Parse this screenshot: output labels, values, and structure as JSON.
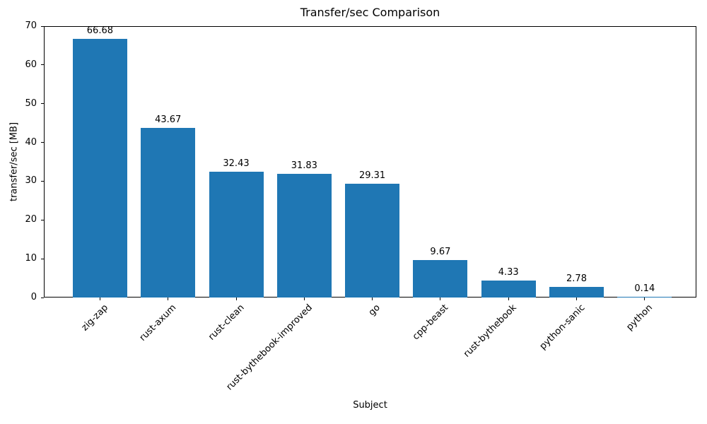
{
  "chart_data": {
    "type": "bar",
    "title": "Transfer/sec Comparison",
    "xlabel": "Subject",
    "ylabel": "transfer/sec [MB]",
    "categories": [
      "zig-zap",
      "rust-axum",
      "rust-clean",
      "rust-bythebook-improved",
      "go",
      "cpp-beast",
      "rust-bythebook",
      "python-sanic",
      "python"
    ],
    "values": [
      66.68,
      43.67,
      32.43,
      31.83,
      29.31,
      9.67,
      4.33,
      2.78,
      0.14
    ],
    "value_labels": [
      "66.68",
      "43.67",
      "32.43",
      "31.83",
      "29.31",
      "9.67",
      "4.33",
      "2.78",
      "0.14"
    ],
    "ylim": [
      0,
      70
    ],
    "yticks": [
      0,
      10,
      20,
      30,
      40,
      50,
      60,
      70
    ],
    "bar_color": "#1f77b4",
    "grid": false,
    "legend": "none",
    "background_color": "#ffffff",
    "text_color": "#000000"
  }
}
